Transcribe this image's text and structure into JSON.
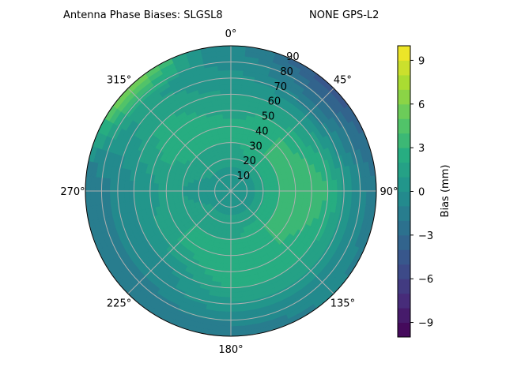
{
  "chart_data": {
    "type": "heatmap",
    "subtype": "polar-contour",
    "title_left": "Antenna Phase Biases: SLGSL8",
    "title_right": "NONE GPS-L2",
    "theta_direction": "clockwise",
    "theta_zero": "north",
    "theta_tick_labels": [
      "0°",
      "45°",
      "90°",
      "135°",
      "180°",
      "225°",
      "270°",
      "315°"
    ],
    "radial_tick_labels": [
      "10",
      "20",
      "30",
      "40",
      "50",
      "60",
      "70",
      "80",
      "90"
    ],
    "radial_range": [
      0,
      90
    ],
    "grid": true,
    "colormap": "viridis",
    "colorbar": {
      "label": "Bias (mm)",
      "range": [
        -10,
        10
      ],
      "level_step": 1,
      "tick_labels": [
        "−9",
        "−6",
        "−3",
        "0",
        "3",
        "6",
        "9"
      ],
      "ticks": [
        -9,
        -6,
        -3,
        0,
        3,
        6,
        9
      ]
    },
    "azimuth_deg": [
      0,
      45,
      90,
      135,
      180,
      225,
      270,
      315
    ],
    "zenith_deg": [
      0,
      15,
      30,
      45,
      60,
      75,
      90
    ],
    "values_mm": [
      [
        0.5,
        1,
        2,
        2,
        1,
        0,
        -1
      ],
      [
        0.5,
        1,
        3,
        3,
        1,
        -2,
        -4.5
      ],
      [
        0.5,
        1,
        3,
        4,
        3,
        0,
        -2
      ],
      [
        0.5,
        1,
        3,
        3,
        2,
        0,
        -1
      ],
      [
        0.5,
        1,
        2,
        3,
        2,
        0,
        -2
      ],
      [
        0.5,
        1,
        2,
        2,
        0,
        -1,
        -2
      ],
      [
        0.5,
        0.5,
        1,
        1,
        0,
        -1,
        -2
      ],
      [
        0.5,
        1,
        2,
        3,
        2,
        1,
        6
      ]
    ]
  }
}
